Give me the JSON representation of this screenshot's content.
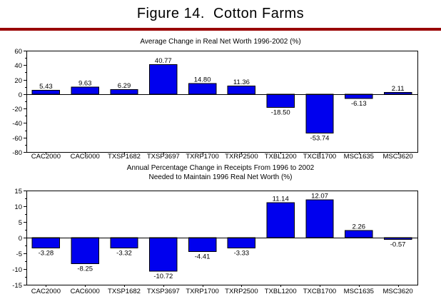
{
  "page": {
    "title": "Figure 14.  Cotton Farms"
  },
  "colors": {
    "divider": "#990000",
    "bar_fill": "#0000EE",
    "bar_border": "#000000",
    "axis": "#000000",
    "background": "#ffffff"
  },
  "chart_data": [
    {
      "type": "bar",
      "name": "net-worth-change-chart",
      "title": "Average Change in Real Net Worth 1996-2002 (%)",
      "categories": [
        "CAC2000",
        "CAC6000",
        "TXSP1682",
        "TXSP3697",
        "TXRP1700",
        "TXRP2500",
        "TXBL1200",
        "TXCB1700",
        "MSC1635",
        "MSC3620"
      ],
      "values": [
        5.43,
        9.63,
        6.29,
        40.77,
        14.8,
        11.36,
        -18.5,
        -53.74,
        -6.13,
        2.11
      ],
      "value_labels": [
        "5.43",
        "9.63",
        "6.29",
        "40.77",
        "14.80",
        "11.36",
        "-18.50",
        "-53.74",
        "-6.13",
        "2.11"
      ],
      "xlabel": "",
      "ylabel": "",
      "ylim": [
        -80,
        60
      ],
      "yticks": [
        60,
        40,
        20,
        0,
        -20,
        -40,
        -60,
        -80
      ],
      "ytick_major": 20,
      "ytick_minor": 10,
      "grid": false,
      "legend": false
    },
    {
      "type": "bar",
      "name": "receipts-change-chart",
      "title_lines": [
        "Annual Percentage Change in Receipts From 1996 to 2002",
        "Needed to Maintain 1996 Real Net Worth (%)"
      ],
      "categories": [
        "CAC2000",
        "CAC6000",
        "TXSP1682",
        "TXSP3697",
        "TXRP1700",
        "TXRP2500",
        "TXBL1200",
        "TXCB1700",
        "MSC1635",
        "MSC3620"
      ],
      "values": [
        -3.28,
        -8.25,
        -3.32,
        -10.72,
        -4.41,
        -3.33,
        11.14,
        12.07,
        2.26,
        -0.57
      ],
      "value_labels": [
        "-3.28",
        "-8.25",
        "-3.32",
        "-10.72",
        "-4.41",
        "-3.33",
        "11.14",
        "12.07",
        "2.26",
        "-0.57"
      ],
      "xlabel": "",
      "ylabel": "",
      "ylim": [
        -15,
        15
      ],
      "yticks": [
        15,
        10,
        5,
        0,
        -5,
        -10,
        -15
      ],
      "ytick_major": 5,
      "ytick_minor": 2.5,
      "grid": false,
      "legend": false
    }
  ]
}
